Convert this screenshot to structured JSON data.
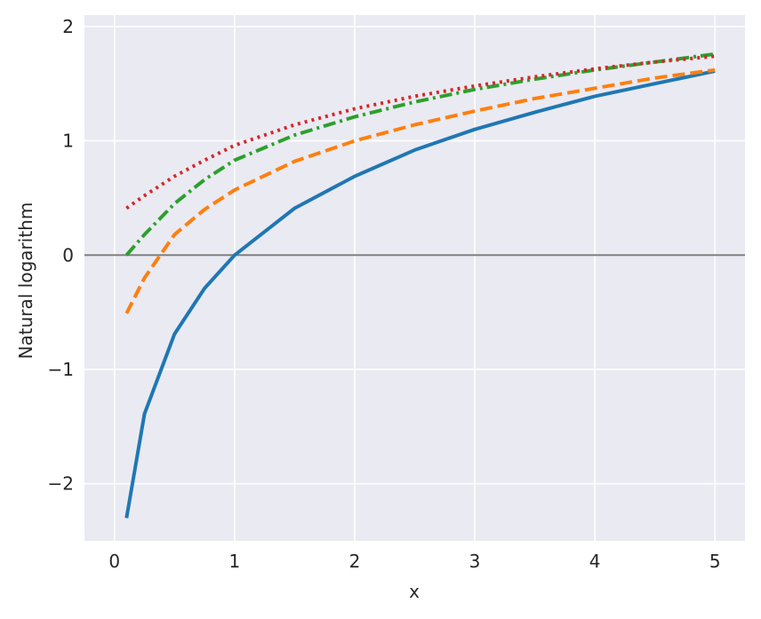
{
  "chart_data": {
    "type": "line",
    "title": "",
    "xlabel": "x",
    "ylabel": "Natural logarithm",
    "xlim": [
      -0.25,
      5.25
    ],
    "ylim": [
      -2.5,
      2.1
    ],
    "xticks": [
      0,
      1,
      2,
      3,
      4,
      5
    ],
    "xtick_labels": [
      "0",
      "1",
      "2",
      "3",
      "4",
      "5"
    ],
    "yticks": [
      -2,
      -1,
      0,
      1,
      2
    ],
    "ytick_labels": [
      "−2",
      "−1",
      "0",
      "1",
      "2"
    ],
    "grid": true,
    "background": "#eaeaf2",
    "reference_line": {
      "y": 0,
      "color": "#808080"
    },
    "x": [
      0.1,
      0.25,
      0.5,
      0.75,
      1,
      1.5,
      2,
      2.5,
      3,
      3.5,
      4,
      4.5,
      5
    ],
    "series": [
      {
        "color": "#1f77b4",
        "dash": "solid",
        "values": [
          -2.3,
          -1.39,
          -0.69,
          -0.29,
          0.0,
          0.41,
          0.69,
          0.92,
          1.1,
          1.25,
          1.39,
          1.5,
          1.61
        ]
      },
      {
        "color": "#ff7f0e",
        "dash": "dashed",
        "values": [
          -0.51,
          -0.2,
          0.18,
          0.4,
          0.57,
          0.82,
          1.0,
          1.14,
          1.26,
          1.37,
          1.46,
          1.55,
          1.62
        ]
      },
      {
        "color": "#2ca02c",
        "dash": "dashdot",
        "values": [
          0.0,
          0.18,
          0.45,
          0.66,
          0.83,
          1.05,
          1.21,
          1.34,
          1.45,
          1.54,
          1.62,
          1.69,
          1.76
        ]
      },
      {
        "color": "#d62728",
        "dash": "dotted",
        "values": [
          0.41,
          0.52,
          0.69,
          0.83,
          0.96,
          1.14,
          1.28,
          1.39,
          1.48,
          1.56,
          1.63,
          1.69,
          1.74
        ]
      }
    ]
  }
}
